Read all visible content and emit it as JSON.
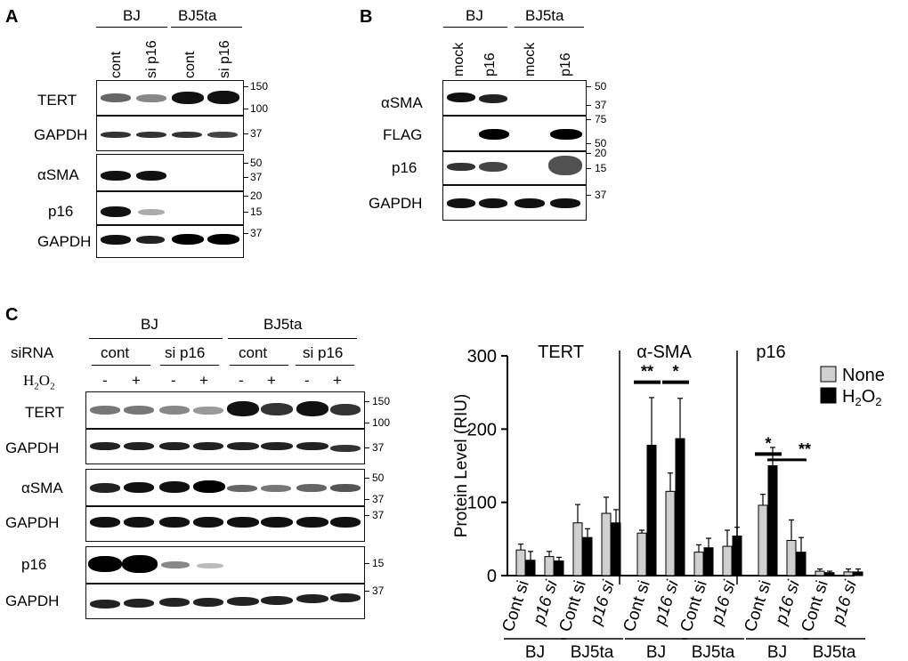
{
  "panelA": {
    "letter": "A",
    "groups": [
      "BJ",
      "BJ5ta"
    ],
    "lanes": [
      "cont",
      "si p16",
      "cont",
      "si p16"
    ],
    "rows": [
      "TERT",
      "GAPDH",
      "αSMA",
      "p16",
      "GAPDH"
    ],
    "markers": [
      "150",
      "100",
      "37",
      "50",
      "37",
      "20",
      "15",
      "37"
    ]
  },
  "panelB": {
    "letter": "B",
    "groups": [
      "BJ",
      "BJ5ta"
    ],
    "lanes": [
      "mock",
      "p16",
      "mock",
      "p16"
    ],
    "rows": [
      "αSMA",
      "FLAG",
      "p16",
      "GAPDH"
    ],
    "markers": [
      "50",
      "37",
      "75",
      "50",
      "20",
      "15",
      "37"
    ]
  },
  "panelC": {
    "letter": "C",
    "groups": [
      "BJ",
      "BJ5ta"
    ],
    "sirna_label": "siRNA",
    "sirna": [
      "cont",
      "si p16",
      "cont",
      "si p16"
    ],
    "h2o2_label": "H",
    "h2o2_sub": "2",
    "h2o2_end": "O",
    "h2o2_sub2": "2",
    "treat": [
      "-",
      "+",
      "-",
      "+",
      "-",
      "+",
      "-",
      "+"
    ],
    "rows": [
      "TERT",
      "GAPDH",
      "αSMA",
      "GAPDH",
      "p16",
      "GAPDH"
    ],
    "markers": [
      "150",
      "100",
      "37",
      "50",
      "37",
      "37",
      "15",
      "37"
    ]
  },
  "chart_data": {
    "type": "bar",
    "ylabel": "Protein Level (RIU)",
    "ylim": [
      0,
      300
    ],
    "yticks": [
      "0",
      "100",
      "200",
      "300"
    ],
    "sections": [
      "TERT",
      "α-SMA",
      "p16"
    ],
    "categories": [
      "Cont si",
      "p16 si",
      "Cont si",
      "p16 si",
      "Cont si",
      "p16 si",
      "Cont si",
      "p16 si",
      "Cont si",
      "p16 si",
      "Cont si",
      "p16 si"
    ],
    "cell_groups": [
      "BJ",
      "BJ5ta",
      "BJ",
      "BJ5ta",
      "BJ",
      "BJ5ta"
    ],
    "legend_position": "top-right",
    "series": [
      {
        "name": "None",
        "color": "#d0d0d0",
        "values": [
          35,
          26,
          72,
          85,
          58,
          115,
          32,
          40,
          96,
          48,
          6,
          5
        ],
        "errors": [
          8,
          7,
          25,
          22,
          4,
          25,
          10,
          22,
          15,
          28,
          3,
          4
        ]
      },
      {
        "name": "H2O2",
        "color": "#000000",
        "values": [
          21,
          20,
          52,
          72,
          178,
          187,
          38,
          54,
          150,
          32,
          4,
          5
        ],
        "errors": [
          12,
          5,
          12,
          18,
          65,
          55,
          13,
          12,
          25,
          20,
          2,
          4
        ]
      }
    ],
    "significance": [
      {
        "label": "**"
      },
      {
        "label": "*"
      },
      {
        "label": "*"
      },
      {
        "label": "**"
      }
    ]
  }
}
